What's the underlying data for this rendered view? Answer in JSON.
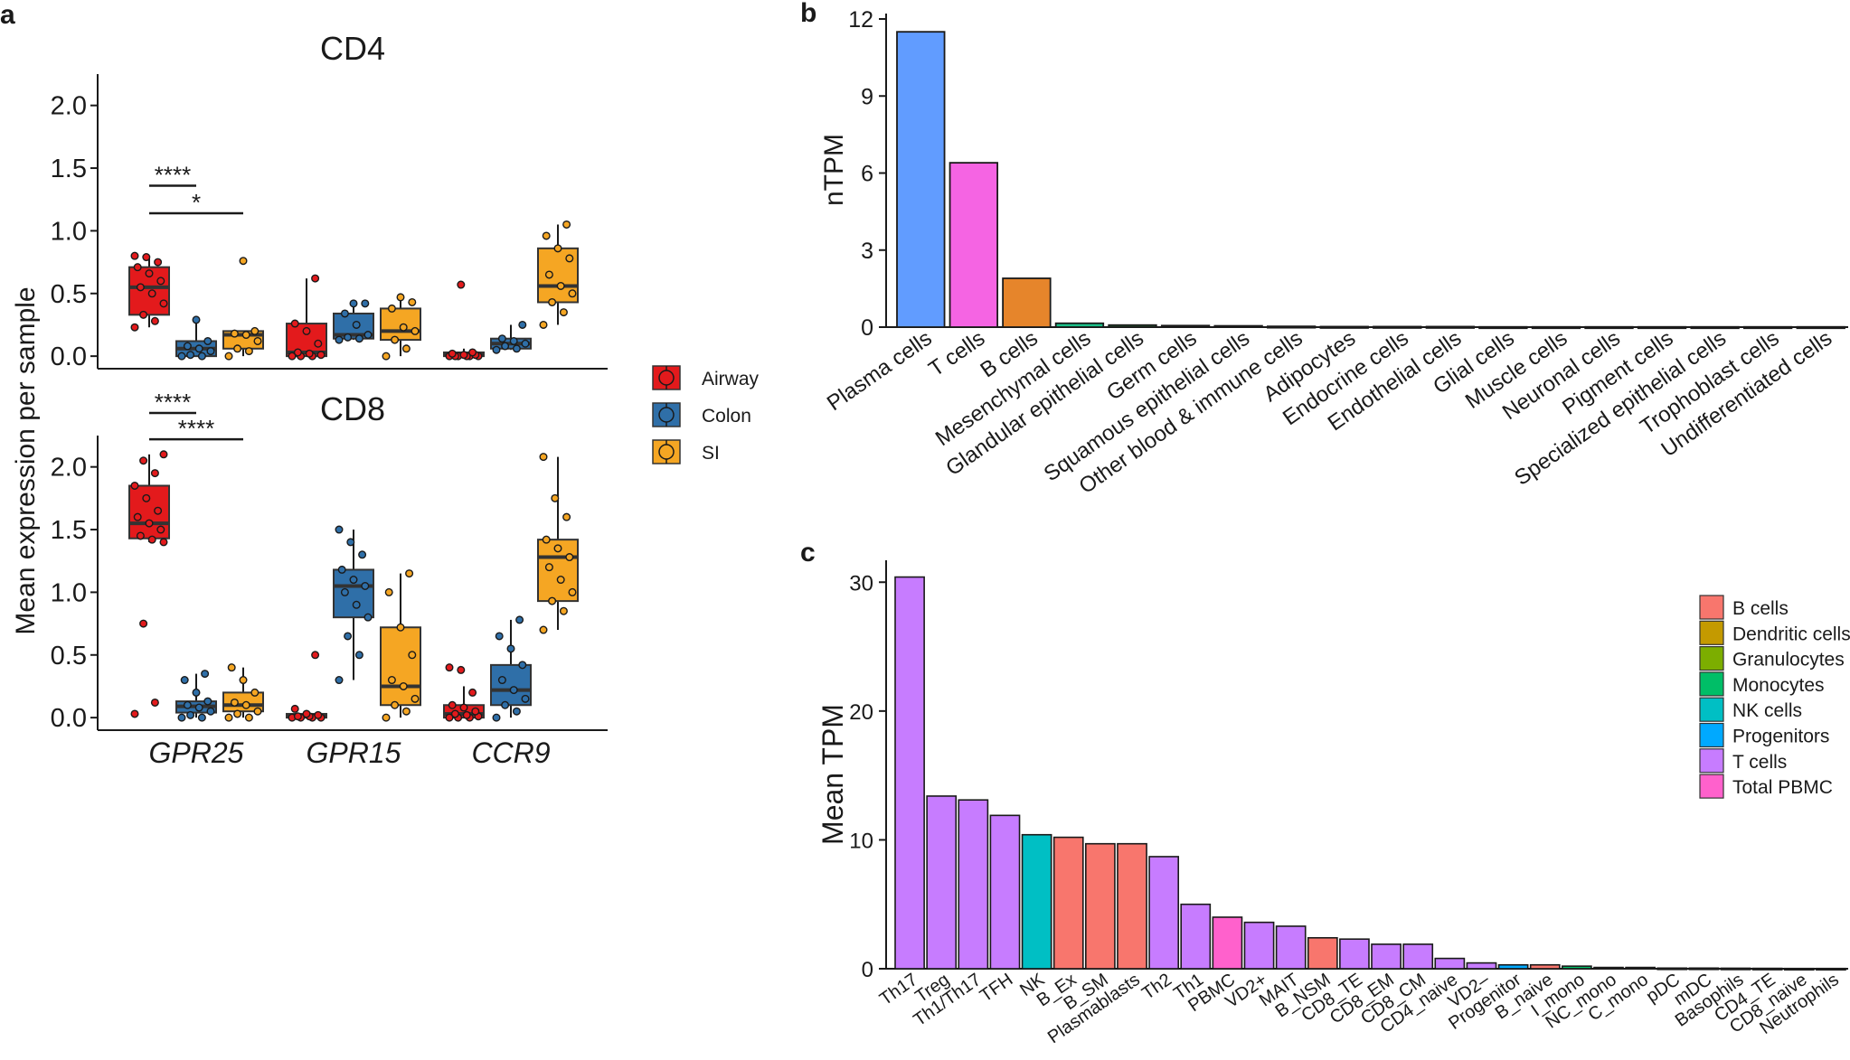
{
  "chart_data": [
    {
      "panel": "a",
      "type": "box",
      "ylabel": "Mean expression per sample",
      "xlabel": "",
      "ylim": [
        -0.1,
        2.25
      ],
      "yticks": [
        "0.0",
        "0.5",
        "1.0",
        "1.5",
        "2.0"
      ],
      "categories": [
        "GPR25",
        "GPR15",
        "CCR9"
      ],
      "legend": {
        "position": "right",
        "items": [
          {
            "label": "Airway",
            "color": "#e31a1c"
          },
          {
            "label": "Colon",
            "color": "#2f6fa8"
          },
          {
            "label": "SI",
            "color": "#f5a623"
          }
        ]
      },
      "facets": [
        {
          "title": "CD4",
          "significance": [
            {
              "label": "****",
              "from": 0,
              "to": 1,
              "y": 1.36
            },
            {
              "label": "*",
              "from": 0,
              "to": 2,
              "y": 1.14
            }
          ],
          "groups": [
            {
              "category": 0,
              "series": 0,
              "q1": 0.33,
              "median": 0.55,
              "q3": 0.71,
              "whisker_low": 0.23,
              "whisker_high": 0.8,
              "points": [
                0.23,
                0.28,
                0.33,
                0.42,
                0.5,
                0.55,
                0.6,
                0.66,
                0.71,
                0.75,
                0.79,
                0.8
              ]
            },
            {
              "category": 0,
              "series": 1,
              "q1": 0.0,
              "median": 0.06,
              "q3": 0.12,
              "whisker_low": 0.0,
              "whisker_high": 0.29,
              "points": [
                0.0,
                0.0,
                0.01,
                0.04,
                0.06,
                0.08,
                0.12,
                0.29
              ]
            },
            {
              "category": 0,
              "series": 2,
              "q1": 0.06,
              "median": 0.17,
              "q3": 0.2,
              "whisker_low": 0.0,
              "whisker_high": 0.2,
              "points": [
                0.0,
                0.04,
                0.06,
                0.12,
                0.17,
                0.18,
                0.2,
                0.76
              ]
            },
            {
              "category": 1,
              "series": 0,
              "q1": 0.0,
              "median": 0.03,
              "q3": 0.26,
              "whisker_low": 0.0,
              "whisker_high": 0.62,
              "points": [
                0.0,
                0.0,
                0.0,
                0.01,
                0.02,
                0.03,
                0.1,
                0.2,
                0.26,
                0.62
              ]
            },
            {
              "category": 1,
              "series": 1,
              "q1": 0.14,
              "median": 0.17,
              "q3": 0.34,
              "whisker_low": 0.13,
              "whisker_high": 0.42,
              "points": [
                0.13,
                0.14,
                0.15,
                0.17,
                0.25,
                0.34,
                0.42,
                0.42
              ]
            },
            {
              "category": 1,
              "series": 2,
              "q1": 0.13,
              "median": 0.2,
              "q3": 0.38,
              "whisker_low": 0.0,
              "whisker_high": 0.47,
              "points": [
                0.0,
                0.06,
                0.13,
                0.2,
                0.23,
                0.38,
                0.43,
                0.47
              ]
            },
            {
              "category": 2,
              "series": 0,
              "q1": 0.0,
              "median": 0.01,
              "q3": 0.03,
              "whisker_low": 0.0,
              "whisker_high": 0.06,
              "points": [
                0.0,
                0.0,
                0.0,
                0.0,
                0.0,
                0.0,
                0.01,
                0.01,
                0.02,
                0.03,
                0.57
              ]
            },
            {
              "category": 2,
              "series": 1,
              "q1": 0.06,
              "median": 0.1,
              "q3": 0.14,
              "whisker_low": 0.05,
              "whisker_high": 0.25,
              "points": [
                0.05,
                0.06,
                0.08,
                0.1,
                0.12,
                0.14,
                0.25
              ]
            },
            {
              "category": 2,
              "series": 2,
              "q1": 0.43,
              "median": 0.56,
              "q3": 0.86,
              "whisker_low": 0.25,
              "whisker_high": 1.05,
              "points": [
                0.25,
                0.35,
                0.43,
                0.5,
                0.56,
                0.65,
                0.78,
                0.86,
                0.96,
                1.05
              ]
            }
          ]
        },
        {
          "title": "CD8",
          "significance": [
            {
              "label": "****",
              "from": 0,
              "to": 1,
              "y": 2.43
            },
            {
              "label": "****",
              "from": 0,
              "to": 2,
              "y": 2.22
            }
          ],
          "groups": [
            {
              "category": 0,
              "series": 0,
              "q1": 1.43,
              "median": 1.55,
              "q3": 1.85,
              "whisker_low": 1.4,
              "whisker_high": 2.1,
              "points": [
                0.03,
                0.12,
                0.75,
                1.4,
                1.42,
                1.45,
                1.5,
                1.55,
                1.6,
                1.65,
                1.75,
                1.85,
                1.95,
                2.05,
                2.1
              ]
            },
            {
              "category": 0,
              "series": 1,
              "q1": 0.04,
              "median": 0.09,
              "q3": 0.13,
              "whisker_low": 0.0,
              "whisker_high": 0.35,
              "points": [
                0.0,
                0.0,
                0.02,
                0.05,
                0.08,
                0.1,
                0.13,
                0.2,
                0.3,
                0.35
              ]
            },
            {
              "category": 0,
              "series": 2,
              "q1": 0.05,
              "median": 0.1,
              "q3": 0.2,
              "whisker_low": 0.0,
              "whisker_high": 0.4,
              "points": [
                0.0,
                0.0,
                0.03,
                0.05,
                0.1,
                0.12,
                0.2,
                0.3,
                0.4
              ]
            },
            {
              "category": 1,
              "series": 0,
              "q1": 0.0,
              "median": 0.01,
              "q3": 0.03,
              "whisker_low": 0.0,
              "whisker_high": 0.05,
              "points": [
                0.0,
                0.0,
                0.0,
                0.0,
                0.01,
                0.01,
                0.02,
                0.03,
                0.07,
                0.5
              ]
            },
            {
              "category": 1,
              "series": 1,
              "q1": 0.8,
              "median": 1.05,
              "q3": 1.18,
              "whisker_low": 0.3,
              "whisker_high": 1.5,
              "points": [
                0.3,
                0.5,
                0.65,
                0.8,
                0.9,
                1.0,
                1.05,
                1.1,
                1.18,
                1.3,
                1.4,
                1.5
              ]
            },
            {
              "category": 1,
              "series": 2,
              "q1": 0.1,
              "median": 0.25,
              "q3": 0.72,
              "whisker_low": 0.0,
              "whisker_high": 1.15,
              "points": [
                0.0,
                0.05,
                0.1,
                0.15,
                0.25,
                0.3,
                0.5,
                0.72,
                1.0,
                1.15
              ]
            },
            {
              "category": 2,
              "series": 0,
              "q1": 0.0,
              "median": 0.03,
              "q3": 0.1,
              "whisker_low": 0.0,
              "whisker_high": 0.25,
              "points": [
                0.0,
                0.0,
                0.0,
                0.01,
                0.02,
                0.03,
                0.05,
                0.08,
                0.1,
                0.2,
                0.38,
                0.4
              ]
            },
            {
              "category": 2,
              "series": 1,
              "q1": 0.1,
              "median": 0.22,
              "q3": 0.42,
              "whisker_low": 0.0,
              "whisker_high": 0.78,
              "points": [
                0.0,
                0.05,
                0.1,
                0.15,
                0.22,
                0.3,
                0.42,
                0.55,
                0.65,
                0.78
              ]
            },
            {
              "category": 2,
              "series": 2,
              "q1": 0.93,
              "median": 1.28,
              "q3": 1.42,
              "whisker_low": 0.7,
              "whisker_high": 2.08,
              "points": [
                0.7,
                0.85,
                0.93,
                1.0,
                1.1,
                1.2,
                1.28,
                1.35,
                1.42,
                1.6,
                1.75,
                2.08
              ]
            }
          ]
        }
      ]
    },
    {
      "panel": "b",
      "type": "bar",
      "ylabel": "nTPM",
      "xlabel": "",
      "ylim": [
        0,
        12
      ],
      "yticks": [
        0,
        3,
        6,
        9,
        12
      ],
      "categories": [
        "Plasma cells",
        "T cells",
        "B cells",
        "Mesenchymal cells",
        "Glandular epithelial cells",
        "Germ cells",
        "Squamous epithelial cells",
        "Other blood & immune cells",
        "Adipocytes",
        "Endocrine cells",
        "Endothelial cells",
        "Glial cells",
        "Muscle cells",
        "Neuronal cells",
        "Pigment cells",
        "Specialized epithelial cells",
        "Trophoblast cells",
        "Undifferentiated cells"
      ],
      "values": [
        11.5,
        6.4,
        1.9,
        0.15,
        0.08,
        0.06,
        0.05,
        0.03,
        0.02,
        0.02,
        0.02,
        0.01,
        0.01,
        0.01,
        0.01,
        0.01,
        0.01,
        0.01
      ],
      "colors": [
        "#619cff",
        "#f564e3",
        "#e6852b",
        "#1bbf87",
        "#2b6b3a",
        "#1a1a1a",
        "#1a1a1a",
        "#1a1a1a",
        "#1a1a1a",
        "#1a1a1a",
        "#1a1a1a",
        "#1a1a1a",
        "#1a1a1a",
        "#1a1a1a",
        "#1a1a1a",
        "#1a1a1a",
        "#1a1a1a",
        "#1a1a1a"
      ]
    },
    {
      "panel": "c",
      "type": "bar",
      "ylabel": "Mean TPM",
      "xlabel": "",
      "ylim": [
        0,
        31
      ],
      "yticks": [
        0,
        10,
        20,
        30
      ],
      "categories": [
        "Th17",
        "Treg",
        "Th1/Th17",
        "TFH",
        "NK",
        "B_Ex",
        "B_SM",
        "Plasmablasts",
        "Th2",
        "Th1",
        "PBMC",
        "VD2+",
        "MAIT",
        "B_NSM",
        "CD8_TE",
        "CD8_EM",
        "CD8_CM",
        "CD4_naive",
        "VD2–",
        "Progenitor",
        "B_naive",
        "I_mono",
        "NC_mono",
        "C_mono",
        "pDC",
        "mDC",
        "Basophils",
        "CD4_TE",
        "CD8_naive",
        "Neutrophils"
      ],
      "values": [
        30.4,
        13.4,
        13.1,
        11.9,
        10.4,
        10.2,
        9.7,
        9.7,
        8.7,
        5.0,
        4.0,
        3.6,
        3.3,
        2.4,
        2.3,
        1.9,
        1.9,
        0.8,
        0.45,
        0.3,
        0.3,
        0.2,
        0.1,
        0.1,
        0.05,
        0.05,
        0.04,
        0.03,
        0.02,
        0.02
      ],
      "groups": [
        "T cells",
        "T cells",
        "T cells",
        "T cells",
        "NK cells",
        "B cells",
        "B cells",
        "B cells",
        "T cells",
        "T cells",
        "Total PBMC",
        "T cells",
        "T cells",
        "B cells",
        "T cells",
        "T cells",
        "T cells",
        "T cells",
        "T cells",
        "Progenitors",
        "B cells",
        "Monocytes",
        "Monocytes",
        "Monocytes",
        "Dendritic cells",
        "Dendritic cells",
        "Granulocytes",
        "T cells",
        "T cells",
        "Granulocytes"
      ],
      "legend": {
        "position": "top-right",
        "items": [
          {
            "label": "B cells",
            "color": "#f8766d"
          },
          {
            "label": "Dendritic cells",
            "color": "#c49a00"
          },
          {
            "label": "Granulocytes",
            "color": "#7cae00"
          },
          {
            "label": "Monocytes",
            "color": "#00be67"
          },
          {
            "label": "NK cells",
            "color": "#00bfc4"
          },
          {
            "label": "Progenitors",
            "color": "#00a9ff"
          },
          {
            "label": "T cells",
            "color": "#c77cff"
          },
          {
            "label": "Total PBMC",
            "color": "#ff61cc"
          }
        ]
      }
    }
  ],
  "panel_labels": {
    "a": "a",
    "b": "b",
    "c": "c"
  }
}
